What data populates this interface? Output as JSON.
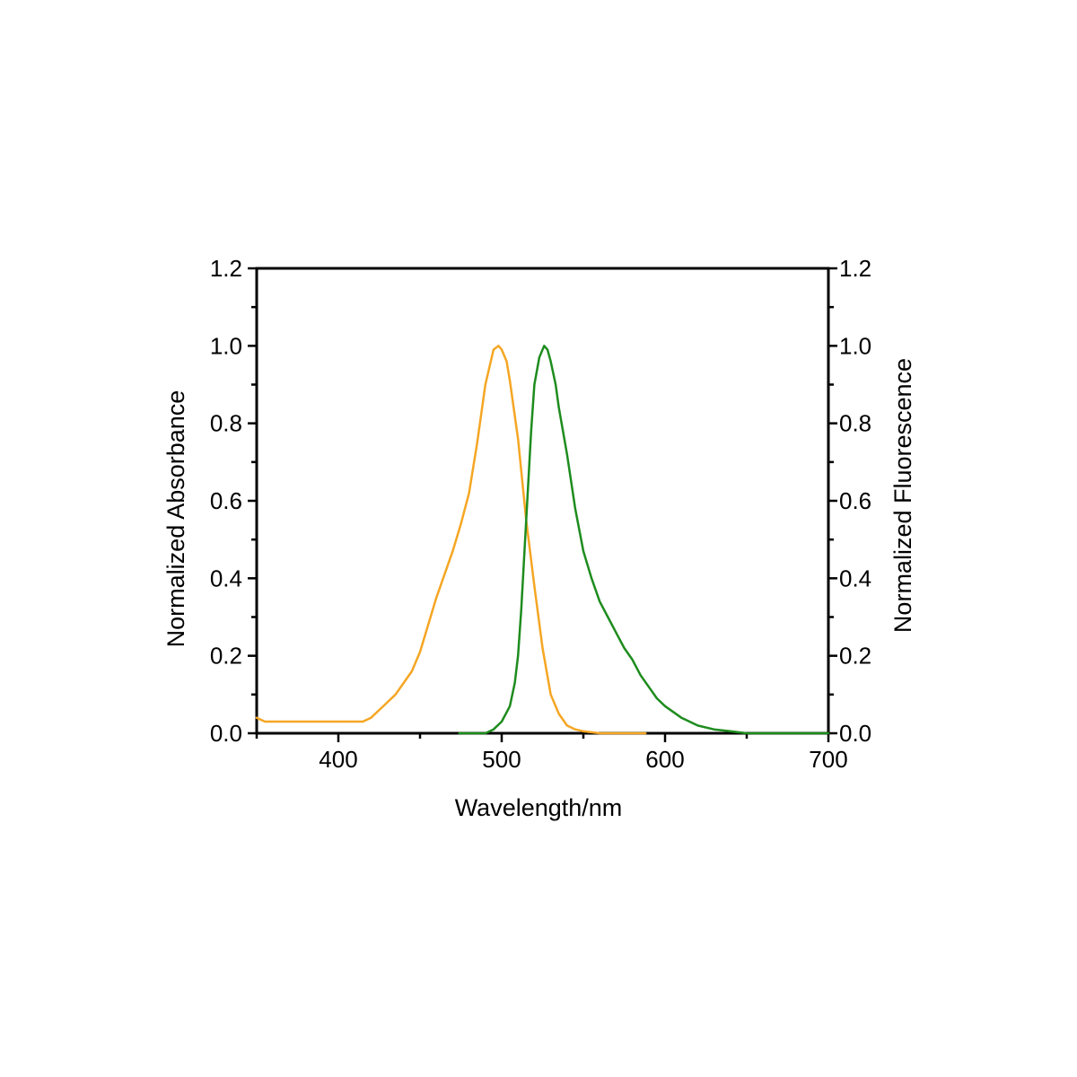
{
  "chart_data": {
    "type": "line",
    "title": "",
    "xlabel": "Wavelength/nm",
    "ylabel_left": "Normalized Absorbance",
    "ylabel_right": "Normalized Fluorescence",
    "xlim": [
      350,
      700
    ],
    "ylim": [
      0.0,
      1.2
    ],
    "x_ticks": [
      "400",
      "500",
      "600",
      "700"
    ],
    "y_ticks": [
      "0.0",
      "0.2",
      "0.4",
      "0.6",
      "0.8",
      "1.0",
      "1.2"
    ],
    "grid": false,
    "legend": "none",
    "series": [
      {
        "color": "#F5A623",
        "axis": "left",
        "x": [
          350,
          355,
          360,
          370,
          380,
          390,
          400,
          410,
          415,
          420,
          425,
          430,
          435,
          440,
          445,
          450,
          455,
          460,
          465,
          470,
          475,
          480,
          485,
          490,
          495,
          498,
          500,
          503,
          505,
          510,
          515,
          520,
          525,
          530,
          535,
          540,
          545,
          550,
          560,
          570,
          580,
          588
        ],
        "y": [
          0.04,
          0.03,
          0.03,
          0.03,
          0.03,
          0.03,
          0.03,
          0.03,
          0.03,
          0.04,
          0.06,
          0.08,
          0.1,
          0.13,
          0.16,
          0.21,
          0.28,
          0.35,
          0.41,
          0.47,
          0.54,
          0.62,
          0.75,
          0.9,
          0.99,
          1.0,
          0.99,
          0.96,
          0.91,
          0.76,
          0.55,
          0.38,
          0.22,
          0.1,
          0.05,
          0.02,
          0.01,
          0.005,
          0.0,
          0.0,
          0.0,
          0.0
        ]
      },
      {
        "color": "#1E8C1E",
        "axis": "right",
        "x": [
          474,
          480,
          485,
          490,
          495,
          500,
          505,
          508,
          510,
          512,
          515,
          518,
          520,
          523,
          526,
          528,
          530,
          533,
          535,
          540,
          545,
          550,
          555,
          560,
          565,
          570,
          575,
          580,
          585,
          590,
          595,
          600,
          610,
          620,
          630,
          640,
          650,
          660,
          680,
          700
        ],
        "y": [
          0.0,
          0.0,
          0.0,
          0.0,
          0.01,
          0.03,
          0.07,
          0.13,
          0.2,
          0.32,
          0.55,
          0.78,
          0.9,
          0.97,
          1.0,
          0.99,
          0.96,
          0.9,
          0.84,
          0.72,
          0.58,
          0.47,
          0.4,
          0.34,
          0.3,
          0.26,
          0.22,
          0.19,
          0.15,
          0.12,
          0.09,
          0.07,
          0.04,
          0.02,
          0.01,
          0.005,
          0.0,
          0.0,
          0.0,
          0.0
        ]
      }
    ]
  }
}
